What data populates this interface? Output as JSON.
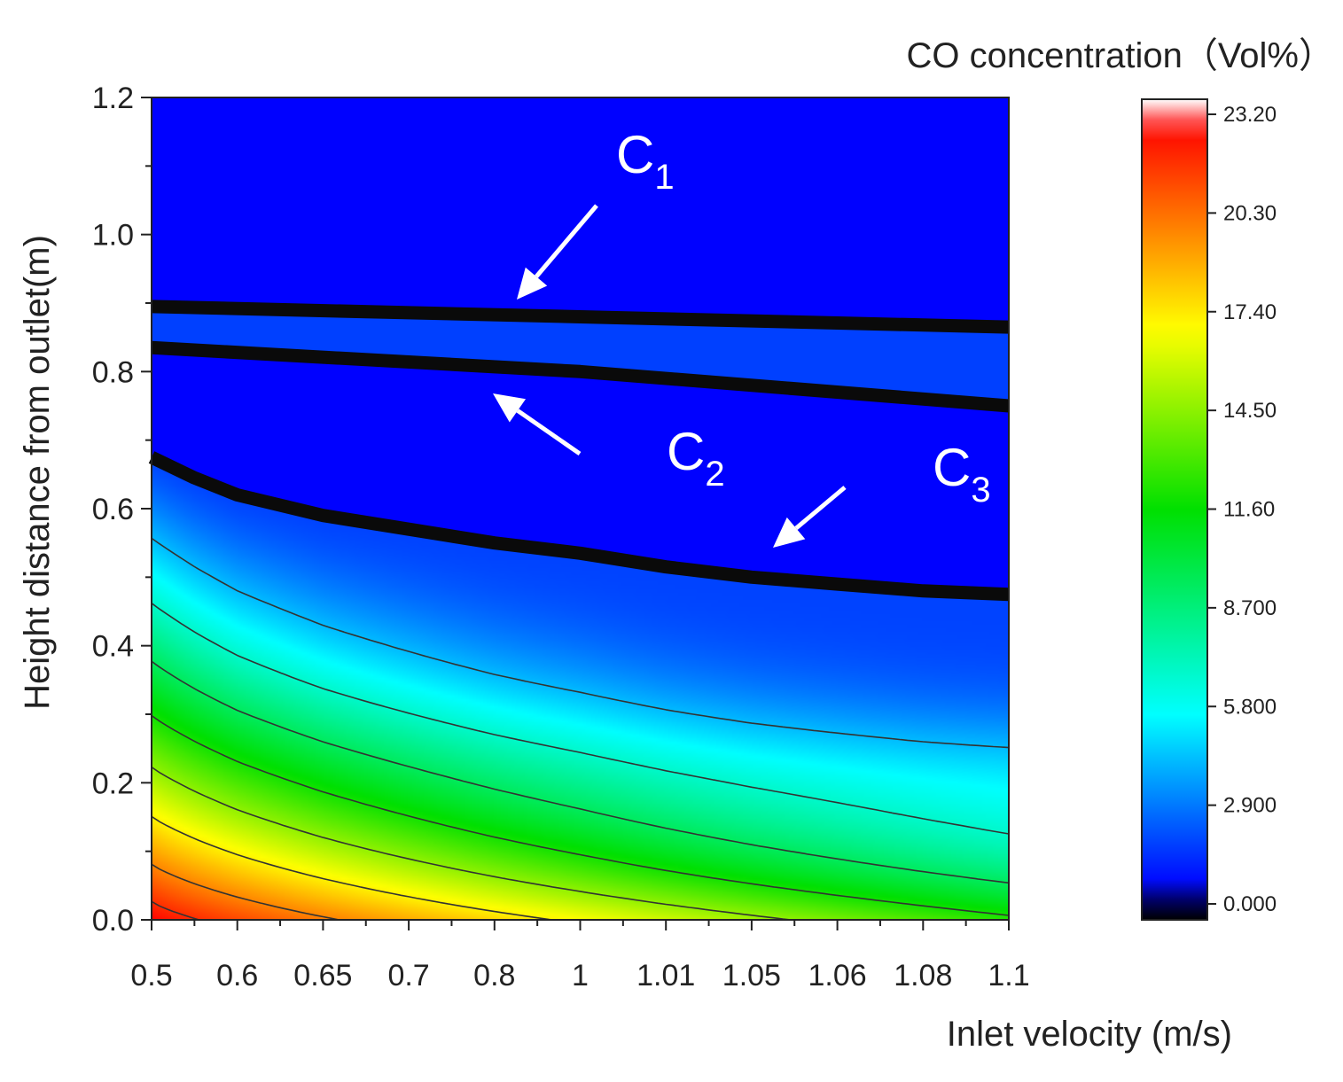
{
  "chart_data": {
    "type": "heatmap",
    "title": "",
    "xlabel": "Inlet velocity (m/s)",
    "ylabel": "Height distance from outlet(m)",
    "x_categories": [
      "0.5",
      "0.6",
      "0.65",
      "0.7",
      "0.8",
      "1",
      "1.01",
      "1.05",
      "1.06",
      "1.08",
      "1.1"
    ],
    "y_ticks": [
      "0.0",
      "0.2",
      "0.4",
      "0.6",
      "0.8",
      "1.0",
      "1.2"
    ],
    "ylim": [
      0,
      1.2
    ],
    "colorbar": {
      "title": "CO concentration（Vol%）",
      "ticks": [
        "0.000",
        "2.900",
        "5.800",
        "8.700",
        "11.60",
        "14.50",
        "17.40",
        "20.30",
        "23.20"
      ],
      "range": [
        0,
        23.2
      ],
      "colors": [
        "#000000",
        "#0000ff",
        "#00ffff",
        "#00e000",
        "#ffff00",
        "#ff0000",
        "#ffffff"
      ]
    },
    "surface": {
      "description_units": "CO vol% at (inlet velocity category index, height m)",
      "peak_value": 22.5,
      "peak_at": [
        0,
        0.0
      ]
    },
    "boundary_lines": [
      {
        "name": "C1",
        "points": [
          [
            0,
            0.895
          ],
          [
            5,
            0.88
          ],
          [
            10,
            0.865
          ]
        ]
      },
      {
        "name": "C2",
        "points": [
          [
            0,
            0.835
          ],
          [
            5,
            0.8
          ],
          [
            10,
            0.75
          ]
        ]
      },
      {
        "name": "C3",
        "points": [
          [
            0,
            0.675
          ],
          [
            0.5,
            0.645
          ],
          [
            1,
            0.62
          ],
          [
            2,
            0.59
          ],
          [
            3,
            0.57
          ],
          [
            4,
            0.55
          ],
          [
            5,
            0.535
          ],
          [
            6,
            0.515
          ],
          [
            7,
            0.5
          ],
          [
            8,
            0.49
          ],
          [
            9,
            0.48
          ],
          [
            10,
            0.475
          ]
        ]
      }
    ],
    "contour_levels": [
      1.5,
      4.5,
      7,
      9.5,
      12,
      14.5,
      17,
      19.5,
      21.5
    ],
    "annotations": [
      {
        "label": "C",
        "subscript": "1",
        "target": "C1"
      },
      {
        "label": "C",
        "subscript": "2",
        "target": "C2"
      },
      {
        "label": "C",
        "subscript": "3",
        "target": "C3"
      }
    ]
  }
}
